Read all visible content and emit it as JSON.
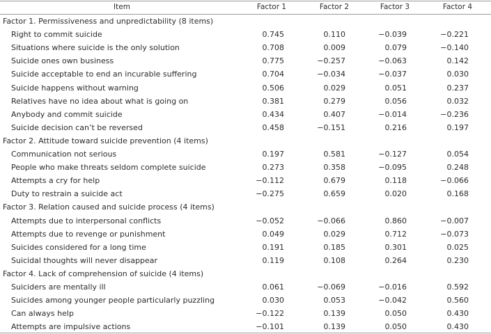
{
  "table": {
    "columns": [
      "Item",
      "Factor 1",
      "Factor 2",
      "Factor 3",
      "Factor 4"
    ],
    "groups": [
      {
        "title": "Factor 1. Permissiveness and unpredictability (8 items)",
        "rows": [
          {
            "item": "Right to commit suicide",
            "values": [
              "0.745",
              "0.110",
              "−0.039",
              "−0.221"
            ]
          },
          {
            "item": "Situations where suicide is the only solution",
            "values": [
              "0.708",
              "0.009",
              "0.079",
              "−0.140"
            ]
          },
          {
            "item": "Suicide ones own business",
            "values": [
              "0.775",
              "−0.257",
              "−0.063",
              "0.142"
            ]
          },
          {
            "item": "Suicide acceptable to end an incurable suffering",
            "values": [
              "0.704",
              "−0.034",
              "−0.037",
              "0.030"
            ]
          },
          {
            "item": "Suicide happens without warning",
            "values": [
              "0.506",
              "0.029",
              "0.051",
              "0.237"
            ]
          },
          {
            "item": "Relatives have no idea about what is going on",
            "values": [
              "0.381",
              "0.279",
              "0.056",
              "0.032"
            ]
          },
          {
            "item": "Anybody and commit suicide",
            "values": [
              "0.434",
              "0.407",
              "−0.014",
              "−0.236"
            ]
          },
          {
            "item": "Suicide decision can’t be reversed",
            "values": [
              "0.458",
              "−0.151",
              "0.216",
              "0.197"
            ]
          }
        ]
      },
      {
        "title": "Factor 2. Attitude toward suicide prevention (4 items)",
        "rows": [
          {
            "item": "Communication not serious",
            "values": [
              "0.197",
              "0.581",
              "−0.127",
              "0.054"
            ]
          },
          {
            "item": "People who make threats seldom complete suicide",
            "values": [
              "0.273",
              "0.358",
              "−0.095",
              "0.248"
            ]
          },
          {
            "item": "Attempts a cry for help",
            "values": [
              "−0.112",
              "0.679",
              "0.118",
              "−0.066"
            ]
          },
          {
            "item": "Duty to restrain a suicide act",
            "values": [
              "−0.275",
              "0.659",
              "0.020",
              "0.168"
            ]
          }
        ]
      },
      {
        "title": "Factor 3. Relation caused and suicide process (4 items)",
        "rows": [
          {
            "item": "Attempts due to interpersonal conflicts",
            "values": [
              "−0.052",
              "−0.066",
              "0.860",
              "−0.007"
            ]
          },
          {
            "item": "Attempts due to revenge or punishment",
            "values": [
              "0.049",
              "0.029",
              "0.712",
              "−0.073"
            ]
          },
          {
            "item": "Suicides considered for a long time",
            "values": [
              "0.191",
              "0.185",
              "0.301",
              "0.025"
            ]
          },
          {
            "item": "Suicidal thoughts will never disappear",
            "values": [
              "0.119",
              "0.108",
              "0.264",
              "0.230"
            ]
          }
        ]
      },
      {
        "title": "Factor 4. Lack of comprehension of suicide (4 items)",
        "rows": [
          {
            "item": "Suiciders are mentally ill",
            "values": [
              "0.061",
              "−0.069",
              "−0.016",
              "0.592"
            ]
          },
          {
            "item": "Suicides among younger people particularly puzzling",
            "values": [
              "0.030",
              "0.053",
              "−0.042",
              "0.560"
            ]
          },
          {
            "item": "Can always help",
            "values": [
              "−0.122",
              "0.139",
              "0.050",
              "0.430"
            ]
          },
          {
            "item": "Attempts are impulsive actions",
            "values": [
              "−0.101",
              "0.139",
              "0.050",
              "0.430"
            ]
          }
        ]
      }
    ]
  }
}
